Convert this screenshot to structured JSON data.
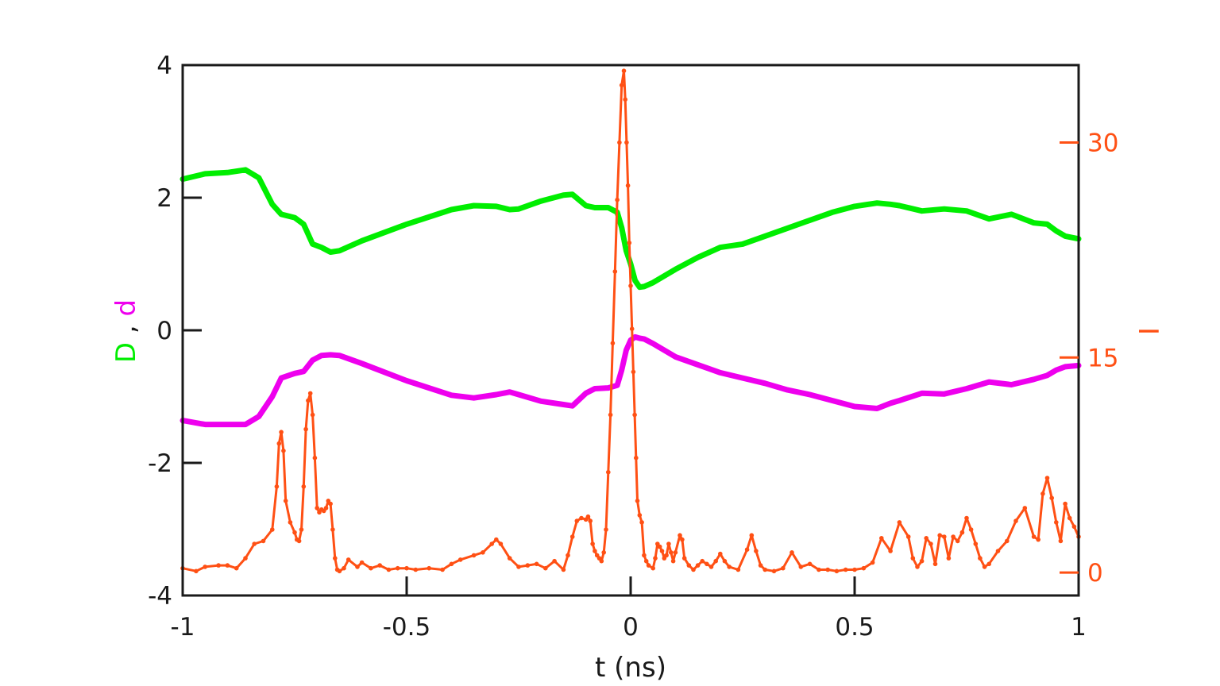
{
  "chart_data": {
    "type": "line",
    "xlabel": "t (ns)",
    "ylabel_left": {
      "parts": [
        {
          "text": "D",
          "color": "#00ee00"
        },
        {
          "text": " , ",
          "color": "#1a1a1a"
        },
        {
          "text": "d",
          "color": "#ee00ee"
        }
      ]
    },
    "ylabel_right": "I",
    "xlim": [
      -1,
      1
    ],
    "ylim_left": [
      -4,
      4
    ],
    "ylim_right": [
      -1.6,
      35.4
    ],
    "x_ticks": [
      "-1",
      "-0.5",
      "0",
      "0.5",
      "1"
    ],
    "x_tick_values": [
      -1,
      -0.5,
      0,
      0.5,
      1
    ],
    "y_left_ticks": [
      "4",
      "2",
      "0",
      "-2",
      "-4"
    ],
    "y_left_tick_values": [
      4,
      2,
      0,
      -2,
      -4
    ],
    "y_right_ticks": [
      "30",
      "15",
      "0"
    ],
    "y_right_tick_values": [
      30,
      15,
      0
    ],
    "colors": {
      "D": "#00ee00",
      "d": "#ee00ee",
      "I": "#ff5014",
      "axis": "#1a1a1a"
    },
    "series": [
      {
        "key": "D",
        "axis": "left",
        "x": [
          -1.0,
          -0.95,
          -0.9,
          -0.86,
          -0.83,
          -0.8,
          -0.78,
          -0.75,
          -0.73,
          -0.71,
          -0.69,
          -0.67,
          -0.65,
          -0.6,
          -0.5,
          -0.4,
          -0.35,
          -0.3,
          -0.27,
          -0.25,
          -0.2,
          -0.15,
          -0.13,
          -0.1,
          -0.08,
          -0.05,
          -0.03,
          -0.02,
          -0.01,
          0.0,
          0.01,
          0.02,
          0.03,
          0.05,
          0.1,
          0.15,
          0.2,
          0.25,
          0.3,
          0.35,
          0.4,
          0.45,
          0.5,
          0.55,
          0.58,
          0.6,
          0.65,
          0.7,
          0.75,
          0.8,
          0.85,
          0.9,
          0.93,
          0.95,
          0.97,
          1.0
        ],
        "y": [
          2.28,
          2.36,
          2.38,
          2.42,
          2.3,
          1.9,
          1.75,
          1.7,
          1.6,
          1.3,
          1.25,
          1.18,
          1.2,
          1.35,
          1.6,
          1.82,
          1.88,
          1.87,
          1.82,
          1.83,
          1.95,
          2.04,
          2.05,
          1.88,
          1.85,
          1.85,
          1.78,
          1.55,
          1.2,
          1.0,
          0.75,
          0.65,
          0.66,
          0.72,
          0.92,
          1.1,
          1.25,
          1.3,
          1.42,
          1.54,
          1.66,
          1.78,
          1.87,
          1.92,
          1.9,
          1.88,
          1.8,
          1.83,
          1.8,
          1.68,
          1.75,
          1.62,
          1.6,
          1.5,
          1.42,
          1.38
        ]
      },
      {
        "key": "d",
        "axis": "left",
        "x": [
          -1.0,
          -0.95,
          -0.9,
          -0.86,
          -0.83,
          -0.8,
          -0.78,
          -0.75,
          -0.73,
          -0.71,
          -0.69,
          -0.67,
          -0.65,
          -0.6,
          -0.5,
          -0.4,
          -0.35,
          -0.3,
          -0.27,
          -0.25,
          -0.2,
          -0.15,
          -0.13,
          -0.1,
          -0.08,
          -0.05,
          -0.03,
          -0.02,
          -0.01,
          0.0,
          0.01,
          0.02,
          0.03,
          0.05,
          0.1,
          0.15,
          0.2,
          0.25,
          0.3,
          0.35,
          0.4,
          0.45,
          0.5,
          0.55,
          0.58,
          0.6,
          0.65,
          0.7,
          0.75,
          0.8,
          0.85,
          0.9,
          0.93,
          0.95,
          0.97,
          1.0
        ],
        "y": [
          -1.36,
          -1.42,
          -1.42,
          -1.42,
          -1.3,
          -1.0,
          -0.72,
          -0.65,
          -0.62,
          -0.45,
          -0.38,
          -0.37,
          -0.38,
          -0.5,
          -0.76,
          -0.98,
          -1.02,
          -0.97,
          -0.93,
          -0.97,
          -1.07,
          -1.12,
          -1.14,
          -0.95,
          -0.88,
          -0.87,
          -0.83,
          -0.6,
          -0.3,
          -0.15,
          -0.1,
          -0.12,
          -0.13,
          -0.2,
          -0.4,
          -0.52,
          -0.64,
          -0.72,
          -0.8,
          -0.9,
          -0.97,
          -1.06,
          -1.15,
          -1.18,
          -1.1,
          -1.06,
          -0.95,
          -0.96,
          -0.88,
          -0.78,
          -0.82,
          -0.74,
          -0.68,
          -0.6,
          -0.55,
          -0.53
        ]
      },
      {
        "key": "I",
        "axis": "right",
        "markers": true,
        "x": [
          -1.0,
          -0.97,
          -0.95,
          -0.92,
          -0.9,
          -0.88,
          -0.86,
          -0.84,
          -0.82,
          -0.8,
          -0.79,
          -0.785,
          -0.78,
          -0.775,
          -0.77,
          -0.76,
          -0.75,
          -0.745,
          -0.74,
          -0.735,
          -0.73,
          -0.725,
          -0.72,
          -0.715,
          -0.71,
          -0.705,
          -0.7,
          -0.695,
          -0.69,
          -0.685,
          -0.68,
          -0.675,
          -0.67,
          -0.665,
          -0.66,
          -0.655,
          -0.65,
          -0.64,
          -0.63,
          -0.61,
          -0.6,
          -0.58,
          -0.56,
          -0.54,
          -0.52,
          -0.5,
          -0.48,
          -0.45,
          -0.42,
          -0.4,
          -0.38,
          -0.35,
          -0.33,
          -0.31,
          -0.3,
          -0.29,
          -0.27,
          -0.25,
          -0.23,
          -0.21,
          -0.19,
          -0.17,
          -0.15,
          -0.14,
          -0.13,
          -0.12,
          -0.11,
          -0.1,
          -0.095,
          -0.09,
          -0.085,
          -0.08,
          -0.075,
          -0.07,
          -0.065,
          -0.06,
          -0.055,
          -0.05,
          -0.045,
          -0.04,
          -0.035,
          -0.03,
          -0.025,
          -0.02,
          -0.015,
          -0.012,
          -0.009,
          -0.006,
          -0.003,
          0.0,
          0.003,
          0.006,
          0.009,
          0.012,
          0.015,
          0.02,
          0.025,
          0.03,
          0.035,
          0.04,
          0.05,
          0.055,
          0.06,
          0.065,
          0.07,
          0.075,
          0.08,
          0.085,
          0.09,
          0.095,
          0.1,
          0.11,
          0.115,
          0.12,
          0.13,
          0.14,
          0.15,
          0.16,
          0.17,
          0.18,
          0.19,
          0.2,
          0.21,
          0.22,
          0.24,
          0.26,
          0.27,
          0.28,
          0.29,
          0.3,
          0.32,
          0.34,
          0.36,
          0.38,
          0.4,
          0.42,
          0.44,
          0.46,
          0.48,
          0.5,
          0.52,
          0.54,
          0.56,
          0.58,
          0.6,
          0.62,
          0.63,
          0.64,
          0.65,
          0.66,
          0.67,
          0.68,
          0.69,
          0.7,
          0.71,
          0.72,
          0.73,
          0.74,
          0.75,
          0.76,
          0.77,
          0.78,
          0.79,
          0.8,
          0.82,
          0.84,
          0.86,
          0.88,
          0.9,
          0.91,
          0.92,
          0.93,
          0.94,
          0.95,
          0.96,
          0.97,
          0.98,
          0.99,
          1.0
        ],
        "y": [
          0.3,
          0.1,
          0.4,
          0.5,
          0.5,
          0.3,
          1.0,
          2.0,
          2.2,
          3.0,
          6.0,
          9.0,
          9.8,
          8.5,
          5.0,
          3.5,
          2.8,
          2.3,
          2.2,
          3.0,
          6.0,
          10.0,
          12.0,
          12.5,
          11.0,
          8.0,
          4.5,
          4.2,
          4.4,
          4.3,
          4.5,
          5.0,
          4.8,
          3.0,
          1.0,
          0.2,
          0.1,
          0.3,
          0.9,
          0.4,
          0.7,
          0.3,
          0.5,
          0.2,
          0.3,
          0.3,
          0.2,
          0.3,
          0.2,
          0.6,
          0.9,
          1.2,
          1.4,
          2.0,
          2.3,
          2.0,
          1.0,
          0.4,
          0.5,
          0.6,
          0.3,
          0.8,
          0.2,
          1.2,
          2.5,
          3.6,
          3.8,
          3.7,
          3.9,
          3.6,
          2.0,
          1.5,
          1.2,
          1.0,
          0.8,
          1.4,
          3.0,
          7.0,
          11.0,
          16.0,
          21.0,
          26.0,
          30.0,
          34.0,
          35.0,
          33.0,
          30.0,
          27.0,
          23.0,
          20.0,
          17.0,
          14.0,
          11.0,
          8.0,
          5.0,
          4.0,
          3.5,
          1.2,
          0.8,
          0.5,
          0.3,
          1.0,
          2.0,
          1.8,
          1.5,
          1.0,
          1.2,
          2.0,
          1.4,
          0.8,
          1.4,
          2.6,
          2.3,
          1.0,
          0.5,
          0.2,
          0.5,
          0.8,
          0.6,
          0.4,
          0.8,
          1.3,
          0.8,
          0.4,
          0.2,
          1.6,
          2.6,
          1.5,
          0.5,
          0.2,
          0.1,
          0.3,
          1.4,
          0.4,
          0.6,
          0.2,
          0.2,
          0.1,
          0.2,
          0.2,
          0.3,
          0.7,
          2.4,
          1.5,
          3.5,
          2.5,
          1.0,
          0.4,
          0.8,
          2.4,
          2.0,
          0.6,
          2.6,
          2.5,
          1.0,
          2.5,
          2.2,
          2.8,
          3.8,
          3.0,
          2.0,
          1.0,
          0.4,
          0.6,
          1.5,
          2.2,
          3.6,
          4.5,
          2.5,
          2.3,
          5.5,
          6.6,
          5.2,
          3.5,
          2.2,
          4.8,
          3.8,
          3.2,
          2.5
        ]
      }
    ]
  }
}
